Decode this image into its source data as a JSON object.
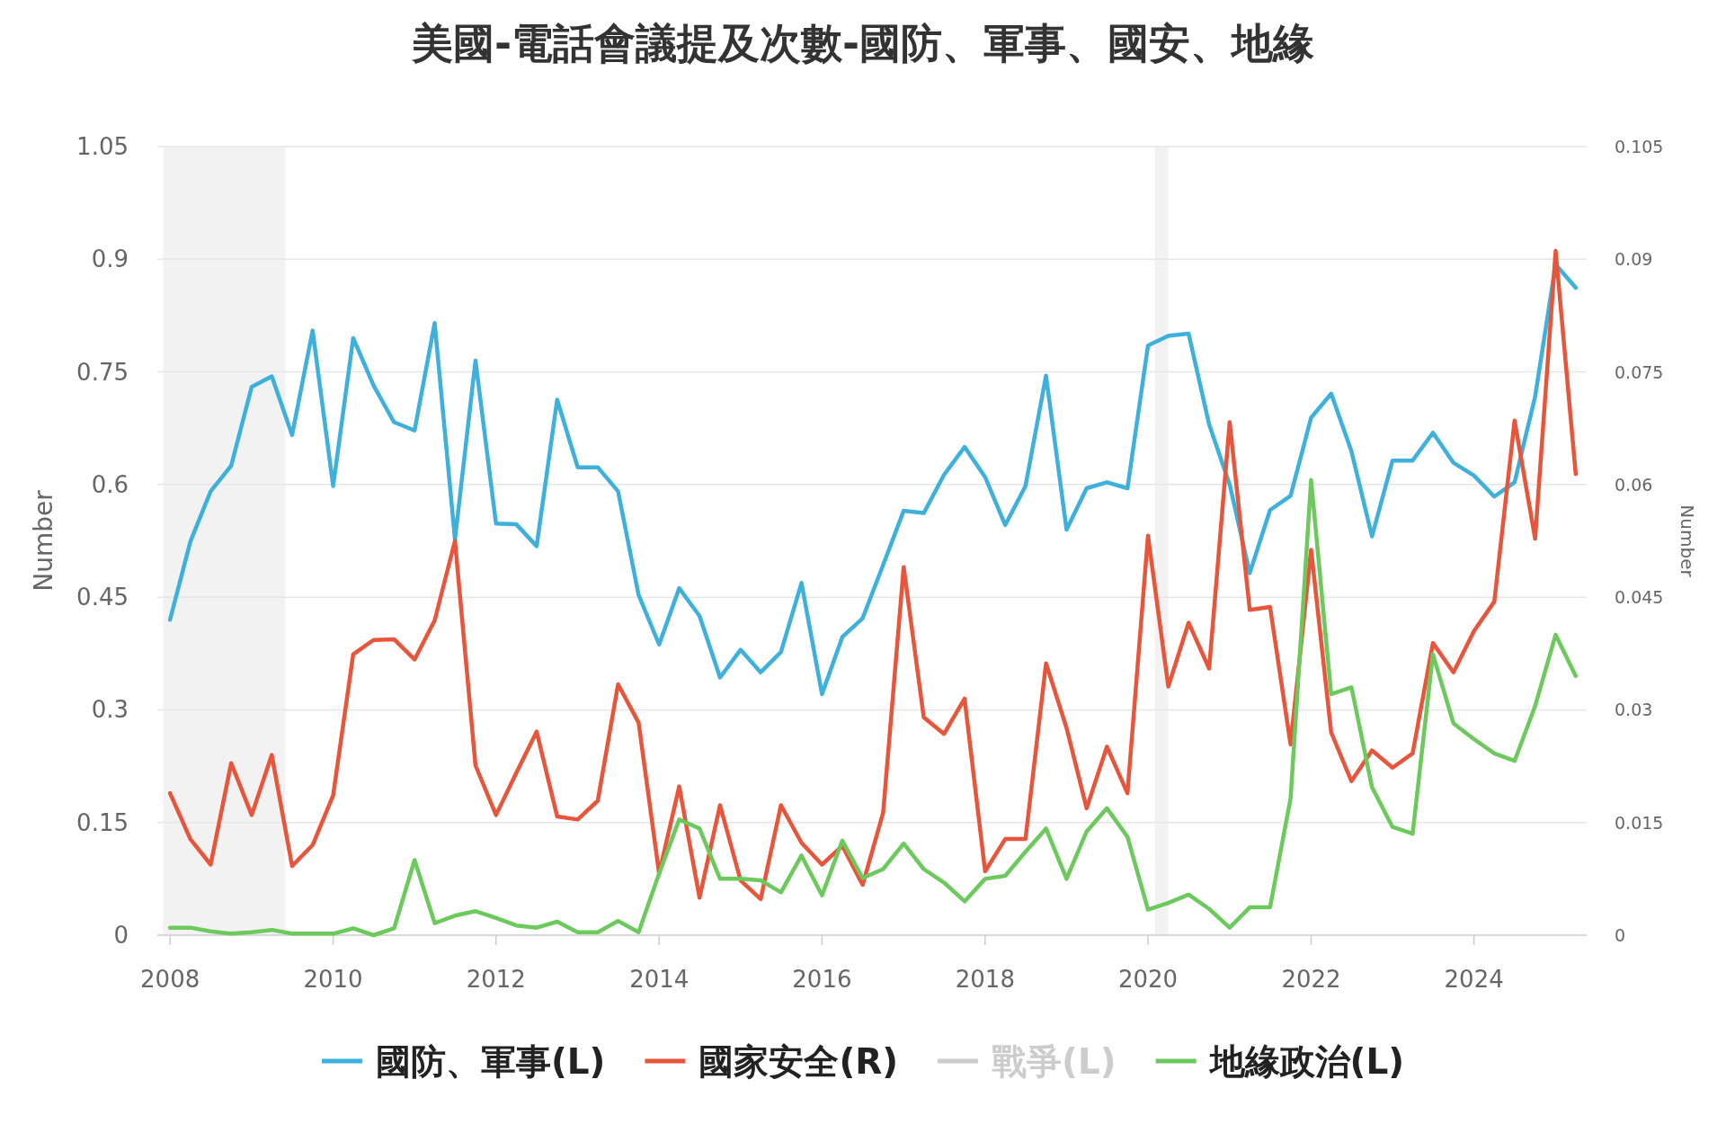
{
  "chart_data": {
    "type": "line",
    "title": "美國-電話會議提及次數-國防、軍事、國安、地緣",
    "ylabel": "Number",
    "y2label": "Number",
    "x": [
      "2008-01",
      "2008-04",
      "2008-07",
      "2008-10",
      "2009-01",
      "2009-04",
      "2009-07",
      "2009-10",
      "2010-01",
      "2010-04",
      "2010-07",
      "2010-10",
      "2011-01",
      "2011-04",
      "2011-07",
      "2011-10",
      "2012-01",
      "2012-04",
      "2012-07",
      "2012-10",
      "2013-01",
      "2013-04",
      "2013-07",
      "2013-10",
      "2014-01",
      "2014-04",
      "2014-07",
      "2014-10",
      "2015-01",
      "2015-04",
      "2015-07",
      "2015-10",
      "2016-01",
      "2016-04",
      "2016-07",
      "2016-10",
      "2017-01",
      "2017-04",
      "2017-07",
      "2017-10",
      "2018-01",
      "2018-04",
      "2018-07",
      "2018-10",
      "2019-01",
      "2019-04",
      "2019-07",
      "2019-10",
      "2020-01",
      "2020-04",
      "2020-07",
      "2020-10",
      "2021-01",
      "2021-04",
      "2021-07",
      "2021-10",
      "2022-01",
      "2022-04",
      "2022-07",
      "2022-10",
      "2023-01",
      "2023-04",
      "2023-07",
      "2023-10",
      "2024-01",
      "2024-04",
      "2024-07",
      "2024-10",
      "2025-01",
      "2025-04"
    ],
    "series": [
      {
        "name": "國防、軍事(L)",
        "color": "#3db0dc",
        "values": [
          0.42,
          0.524,
          0.591,
          0.625,
          0.73,
          0.744,
          0.666,
          0.805,
          0.598,
          0.795,
          0.732,
          0.683,
          0.672,
          0.815,
          0.527,
          0.765,
          0.548,
          0.547,
          0.518,
          0.713,
          0.623,
          0.623,
          0.591,
          0.453,
          0.387,
          0.462,
          0.425,
          0.343,
          0.38,
          0.35,
          0.377,
          0.469,
          0.321,
          0.397,
          0.422,
          0.493,
          0.565,
          0.562,
          0.613,
          0.65,
          0.61,
          0.546,
          0.598,
          0.745,
          0.54,
          0.595,
          0.603,
          0.595,
          0.785,
          0.798,
          0.801,
          0.68,
          0.6,
          0.482,
          0.566,
          0.585,
          0.689,
          0.721,
          0.644,
          0.531,
          0.632,
          0.632,
          0.669,
          0.629,
          0.612,
          0.584,
          0.603,
          0.717,
          0.893,
          0.862
        ]
      },
      {
        "name": "國家安全(R)",
        "color": "#e9553b",
        "axis": "y2",
        "values": [
          0.0189,
          0.0128,
          0.0094,
          0.0229,
          0.016,
          0.024,
          0.0092,
          0.012,
          0.0186,
          0.0374,
          0.0393,
          0.0394,
          0.0367,
          0.0419,
          0.0525,
          0.0226,
          0.016,
          0.0216,
          0.0271,
          0.0158,
          0.0154,
          0.0179,
          0.0334,
          0.0283,
          0.0082,
          0.0198,
          0.005,
          0.0173,
          0.0073,
          0.0048,
          0.0173,
          0.0123,
          0.0094,
          0.0119,
          0.0067,
          0.0163,
          0.049,
          0.029,
          0.0268,
          0.0315,
          0.0085,
          0.0128,
          0.0128,
          0.0362,
          0.0276,
          0.0169,
          0.0251,
          0.0189,
          0.0532,
          0.0331,
          0.0416,
          0.0355,
          0.0683,
          0.0433,
          0.0437,
          0.0254,
          0.0513,
          0.027,
          0.0205,
          0.0246,
          0.0223,
          0.0242,
          0.0389,
          0.035,
          0.0405,
          0.0444,
          0.0685,
          0.0528,
          0.0911,
          0.0614
        ]
      },
      {
        "name": "戰爭(L)",
        "color": "#cccccc",
        "values": [
          null,
          null,
          null,
          null,
          null,
          null,
          null,
          null,
          null,
          null,
          null,
          null,
          null,
          null,
          null,
          null,
          null,
          null,
          null,
          null,
          null,
          null,
          null,
          null,
          null,
          null,
          null,
          null,
          null,
          null,
          null,
          null,
          null,
          null,
          null,
          null,
          null,
          null,
          null,
          null,
          null,
          null,
          null,
          null,
          null,
          null,
          null,
          null,
          null,
          null,
          null,
          null,
          null,
          null,
          null,
          null,
          null,
          null,
          null,
          null,
          null,
          null,
          null,
          null,
          null,
          null,
          null,
          null,
          null,
          null
        ]
      },
      {
        "name": "地緣政治(L)",
        "color": "#6cc95c",
        "values": [
          0.01,
          0.01,
          0.005,
          0.002,
          0.004,
          0.007,
          0.002,
          0.002,
          0.002,
          0.009,
          0,
          0.009,
          0.1,
          0.016,
          0.026,
          0.032,
          0.023,
          0.013,
          0.01,
          0.018,
          0.004,
          0.004,
          0.019,
          0.004,
          0.082,
          0.154,
          0.142,
          0.075,
          0.075,
          0.073,
          0.057,
          0.106,
          0.053,
          0.126,
          0.076,
          0.088,
          0.122,
          0.088,
          0.07,
          0.045,
          0.075,
          0.079,
          0.111,
          0.142,
          0.075,
          0.138,
          0.169,
          0.131,
          0.034,
          0.043,
          0.054,
          0.035,
          0.01,
          0.037,
          0.037,
          0.182,
          0.606,
          0.321,
          0.33,
          0.197,
          0.144,
          0.135,
          0.374,
          0.282,
          0.261,
          0.242,
          0.232,
          0.305,
          0.4,
          0.345
        ]
      }
    ],
    "xlim": [
      "2007-11-05",
      "2025-05-20"
    ],
    "xticks": [
      "2008",
      "2010",
      "2012",
      "2014",
      "2016",
      "2018",
      "2020",
      "2022",
      "2024"
    ],
    "ylim": [
      0,
      1.05
    ],
    "yticks": [
      0,
      0.15,
      0.3,
      0.45,
      0.6,
      0.75,
      0.9,
      1.05
    ],
    "y2lim": [
      0,
      0.105
    ],
    "y2ticks": [
      0,
      0.015,
      0.03,
      0.045,
      0.06,
      0.075,
      0.09,
      0.105
    ],
    "bands": [
      {
        "axis": "x",
        "from": "2007-12",
        "to": "2009-06",
        "color": "#f2f2f2"
      },
      {
        "axis": "x",
        "from": "2020-02",
        "to": "2020-04",
        "color": "#f2f2f2"
      }
    ],
    "grid": "y",
    "legend": "bottom",
    "line_style": "solid"
  }
}
